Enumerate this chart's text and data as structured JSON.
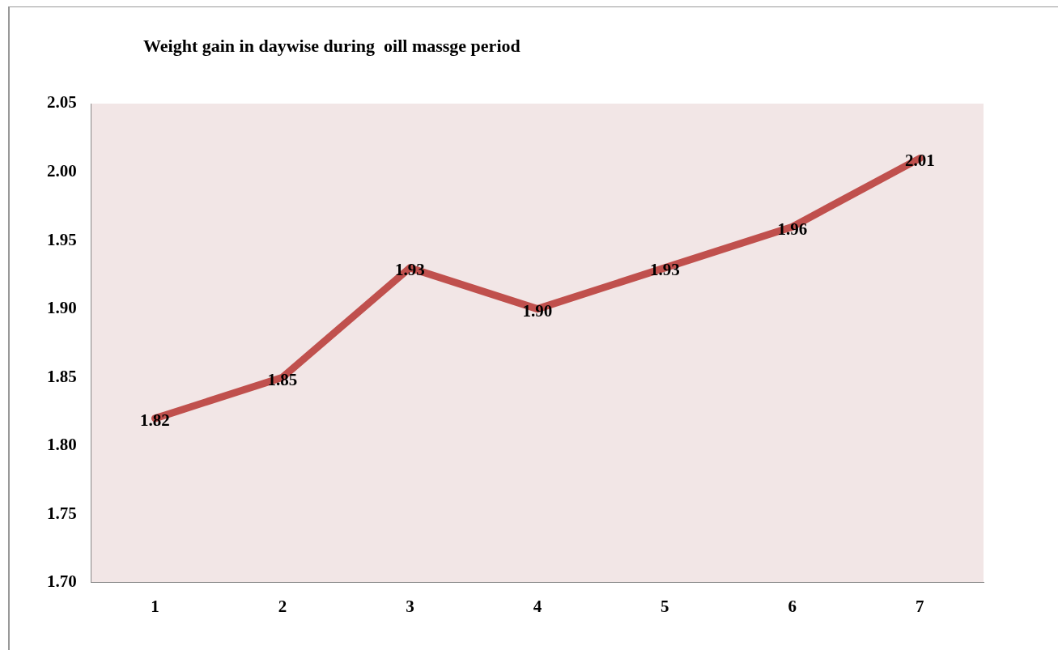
{
  "chart_data": {
    "type": "line",
    "title": "Weight gain in daywise during  oill massge period",
    "categories": [
      "1",
      "2",
      "3",
      "4",
      "5",
      "6",
      "7"
    ],
    "series": [
      {
        "color": "#c0504d",
        "values": [
          1.82,
          1.85,
          1.93,
          1.9,
          1.93,
          1.96,
          2.01
        ],
        "value_labels": [
          "1.82",
          "1.85",
          "1.93",
          "1.90",
          "1.93",
          "1.96",
          "2.01"
        ]
      }
    ],
    "ylim": [
      1.7,
      2.05
    ],
    "yticks": [
      {
        "value": 1.7,
        "label": "1.70"
      },
      {
        "value": 1.75,
        "label": "1.75"
      },
      {
        "value": 1.8,
        "label": "1.80"
      },
      {
        "value": 1.85,
        "label": "1.85"
      },
      {
        "value": 1.9,
        "label": "1.90"
      },
      {
        "value": 1.95,
        "label": "1.95"
      },
      {
        "value": 2.0,
        "label": "2.00"
      },
      {
        "value": 2.05,
        "label": "2.05"
      }
    ],
    "grid": false,
    "legend": false,
    "marker": "none",
    "line_style": "solid"
  }
}
